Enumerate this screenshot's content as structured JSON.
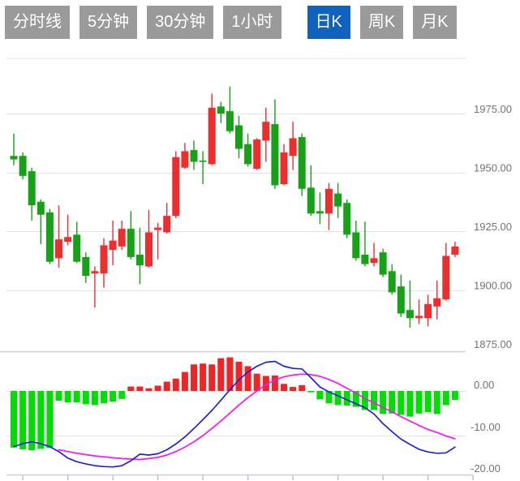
{
  "toolbar": {
    "tabs": [
      {
        "label": "分时线",
        "active": false
      },
      {
        "label": "5分钟",
        "active": false
      },
      {
        "label": "30分钟",
        "active": false
      },
      {
        "label": "1小时",
        "active": false
      },
      {
        "label": "日K",
        "active": true
      },
      {
        "label": "周K",
        "active": false
      },
      {
        "label": "月K",
        "active": false
      }
    ],
    "active_color": "#1161bf",
    "inactive_color": "#9a9a9a"
  },
  "chart_data": {
    "type": "candlestick-with-macd",
    "price_axis": {
      "labels": [
        "1975.00",
        "1950.00",
        "1925.00",
        "1900.00",
        "1875.00"
      ],
      "values": [
        1975,
        1950,
        1925,
        1900,
        1875
      ],
      "top_gridline_value": 2000,
      "position": "right",
      "grid": true
    },
    "macd_axis": {
      "labels": [
        "0.00",
        "-10.00",
        "-20.00"
      ],
      "values": [
        0,
        -10,
        -20
      ],
      "position": "right",
      "grid": true
    },
    "candles_ohlc": [
      [
        1957,
        1966.5,
        1953,
        1955.5
      ],
      [
        1957,
        1958.5,
        1947,
        1948.5
      ],
      [
        1950.5,
        1952,
        1929.5,
        1936
      ],
      [
        1937.5,
        1938.5,
        1919.5,
        1932
      ],
      [
        1933,
        1934.5,
        1911,
        1912
      ],
      [
        1913.5,
        1936,
        1909.5,
        1921.5
      ],
      [
        1920.5,
        1932,
        1919,
        1922.5
      ],
      [
        1923.5,
        1929,
        1911.5,
        1912
      ],
      [
        1914,
        1916,
        1903,
        1906
      ],
      [
        1907,
        1910,
        1892.5,
        1908
      ],
      [
        1907,
        1922,
        1901,
        1919
      ],
      [
        1917,
        1929.5,
        1910.5,
        1921
      ],
      [
        1918.5,
        1929.5,
        1917,
        1926
      ],
      [
        1926,
        1933.5,
        1913,
        1914
      ],
      [
        1915,
        1926.5,
        1902.5,
        1910.5
      ],
      [
        1910,
        1934,
        1909.5,
        1924.5
      ],
      [
        1925.5,
        1928.5,
        1913,
        1926.5
      ],
      [
        1924.5,
        1937,
        1924,
        1931.5
      ],
      [
        1931.5,
        1959,
        1930.5,
        1956.5
      ],
      [
        1952,
        1962.5,
        1951.5,
        1959
      ],
      [
        1959.5,
        1963.5,
        1951,
        1954.5
      ],
      [
        1955,
        1959,
        1945,
        1954.5
      ],
      [
        1953.5,
        1983.5,
        1953,
        1977.5
      ],
      [
        1978,
        1980,
        1971,
        1975
      ],
      [
        1976,
        1986.5,
        1966.5,
        1967.5
      ],
      [
        1970,
        1974,
        1956,
        1960
      ],
      [
        1962,
        1966.5,
        1952.5,
        1953.5
      ],
      [
        1951.5,
        1964.5,
        1951,
        1964
      ],
      [
        1963.5,
        1977.5,
        1954.5,
        1971.5
      ],
      [
        1970.5,
        1981,
        1943,
        1944.5
      ],
      [
        1945,
        1962,
        1944.5,
        1958.5
      ],
      [
        1957,
        1971.5,
        1951,
        1964.5
      ],
      [
        1965,
        1966.5,
        1940,
        1943
      ],
      [
        1943.5,
        1953,
        1931.5,
        1932.5
      ],
      [
        1933.5,
        1941.5,
        1928,
        1932.5
      ],
      [
        1932.5,
        1945.5,
        1925.5,
        1943
      ],
      [
        1941,
        1945.5,
        1930.5,
        1935.5
      ],
      [
        1937,
        1938.5,
        1922,
        1923.5
      ],
      [
        1924.5,
        1929.5,
        1912.5,
        1913.5
      ],
      [
        1915,
        1929,
        1910,
        1911
      ],
      [
        1911.5,
        1920,
        1910,
        1913.5
      ],
      [
        1916,
        1917.5,
        1905.5,
        1906.5
      ],
      [
        1908,
        1911,
        1898,
        1899
      ],
      [
        1901.5,
        1906.5,
        1888.5,
        1890
      ],
      [
        1891.5,
        1904,
        1884,
        1888
      ],
      [
        1888,
        1896,
        1885.5,
        1889
      ],
      [
        1888,
        1898,
        1884.5,
        1894
      ],
      [
        1893,
        1904,
        1887.5,
        1896.5
      ],
      [
        1896,
        1920,
        1895.5,
        1914.5
      ],
      [
        1915,
        1920.5,
        1914,
        1918.5
      ]
    ],
    "macd": {
      "histogram": [
        -12.8,
        -13.2,
        -13.4,
        -13.1,
        -12.9,
        -2.2,
        -2.6,
        -2.6,
        -3.0,
        -3.2,
        -2.8,
        -2.4,
        -1.8,
        1.0,
        1.0,
        0.6,
        1.2,
        2.1,
        2.8,
        4.3,
        6.0,
        6.2,
        6.0,
        7.4,
        7.6,
        6.6,
        5.6,
        3.9,
        3.4,
        3.5,
        1.6,
        0.9,
        1.3,
        -0.3,
        -1.9,
        -2.8,
        -3.2,
        -3.3,
        -3.6,
        -4.3,
        -4.3,
        -5.2,
        -5.1,
        -5.4,
        -5.8,
        -5.1,
        -4.8,
        -5.2,
        -3.2,
        -2.0
      ],
      "dif": [
        -12.6,
        -11.9,
        -11.5,
        -11.9,
        -12.6,
        -13.7,
        -15.2,
        -16.0,
        -16.5,
        -16.9,
        -17.1,
        -17.2,
        -16.9,
        -15.8,
        -14.3,
        -14.5,
        -14.2,
        -13.3,
        -12.0,
        -10.4,
        -8.5,
        -6.5,
        -4.4,
        -2.1,
        0.3,
        2.5,
        4.3,
        5.6,
        6.5,
        6.7,
        5.6,
        5.1,
        5.0,
        3.0,
        0.9,
        -0.2,
        -1.1,
        -2.0,
        -2.9,
        -3.8,
        -5.2,
        -7.4,
        -9.2,
        -10.9,
        -12.1,
        -13.2,
        -13.8,
        -14.1,
        -14.0,
        -12.7
      ],
      "dea": [
        null,
        null,
        null,
        null,
        null,
        -13.3,
        -13.7,
        -14.1,
        -14.4,
        -14.7,
        -14.9,
        -15.1,
        -15.3,
        -15.4,
        -15.5,
        -15.3,
        -15.0,
        -14.5,
        -13.7,
        -12.7,
        -11.5,
        -10.1,
        -8.5,
        -6.8,
        -5.0,
        -3.2,
        -1.5,
        0.0,
        1.4,
        2.5,
        3.2,
        3.6,
        3.8,
        3.7,
        3.3,
        2.6,
        1.7,
        0.6,
        -0.5,
        -1.7,
        -2.7,
        -3.7,
        -4.7,
        -5.8,
        -6.8,
        -7.8,
        -8.7,
        -9.4,
        -10.2,
        -10.8
      ]
    },
    "colors": {
      "up": "#ee2e2e",
      "down": "#17a117",
      "hist_positive": "#f02424",
      "hist_negative": "#00dd00",
      "dif_line": "#2121db",
      "dea_line": "#fa12fa",
      "grid": "#e2e2e2",
      "separator": "#d2d2d2",
      "axis": "#c9cfdb",
      "tick": "#b9c2d5",
      "label": "#73737b"
    },
    "x_axis": {
      "tick_count": 11,
      "labels_visible": false
    },
    "legend": null,
    "title": ""
  }
}
